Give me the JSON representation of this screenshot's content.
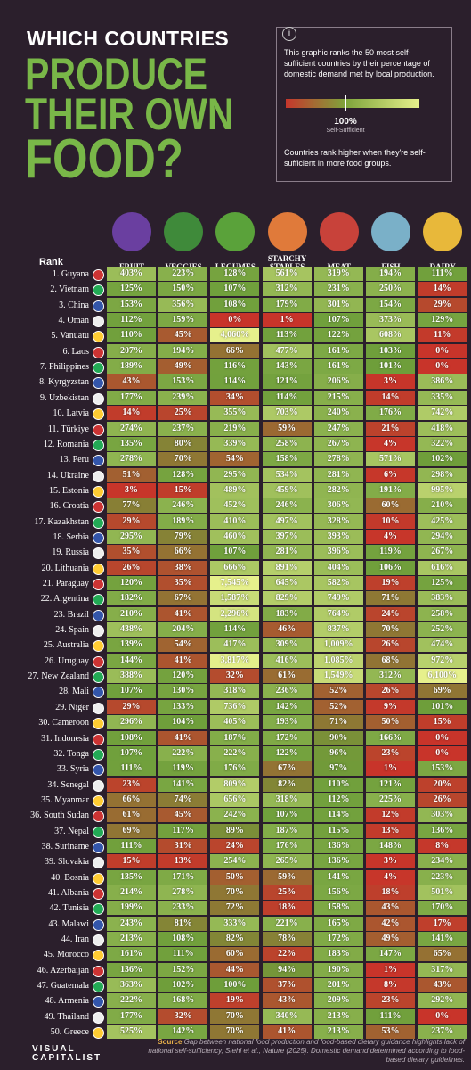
{
  "header": {
    "line1": "WHICH COUNTRIES",
    "line2": "PRODUCE",
    "line3": "THEIR OWN",
    "line4": "FOOD?"
  },
  "info": {
    "text": "This graphic ranks the 50 most self-sufficient countries by their percentage of domestic demand met by local production.",
    "legend_value": "100%",
    "legend_label": "Self-Sufficient",
    "note": "Countries rank higher when they're self-sufficient in more food groups."
  },
  "table": {
    "rank_header": "Rank",
    "columns": [
      "FRUIT",
      "VEGGIES",
      "LEGUMES",
      "STARCHY STAPLES",
      "MEAT",
      "FISH",
      "DAIRY"
    ],
    "rows": [
      [
        "1. Guyana",
        "403%",
        "223%",
        "128%",
        "561%",
        "319%",
        "194%",
        "111%"
      ],
      [
        "2. Vietnam",
        "125%",
        "150%",
        "107%",
        "312%",
        "231%",
        "250%",
        "14%"
      ],
      [
        "3. China",
        "153%",
        "356%",
        "108%",
        "179%",
        "301%",
        "154%",
        "29%"
      ],
      [
        "4. Oman",
        "112%",
        "159%",
        "0%",
        "1%",
        "107%",
        "373%",
        "129%"
      ],
      [
        "5. Vanuatu",
        "110%",
        "45%",
        "4,060%",
        "113%",
        "122%",
        "608%",
        "11%"
      ],
      [
        "6. Laos",
        "207%",
        "194%",
        "66%",
        "477%",
        "161%",
        "103%",
        "0%"
      ],
      [
        "7. Philippines",
        "189%",
        "49%",
        "116%",
        "143%",
        "161%",
        "101%",
        "0%"
      ],
      [
        "8. Kyrgyzstan",
        "43%",
        "153%",
        "114%",
        "121%",
        "206%",
        "3%",
        "386%"
      ],
      [
        "9. Uzbekistan",
        "177%",
        "239%",
        "34%",
        "114%",
        "215%",
        "14%",
        "335%"
      ],
      [
        "10. Latvia",
        "14%",
        "25%",
        "355%",
        "703%",
        "240%",
        "176%",
        "742%"
      ],
      [
        "11. Türkiye",
        "274%",
        "237%",
        "219%",
        "59%",
        "247%",
        "21%",
        "418%"
      ],
      [
        "12. Romania",
        "135%",
        "80%",
        "339%",
        "258%",
        "267%",
        "4%",
        "322%"
      ],
      [
        "13. Peru",
        "278%",
        "70%",
        "54%",
        "158%",
        "278%",
        "571%",
        "102%"
      ],
      [
        "14. Ukraine",
        "51%",
        "128%",
        "295%",
        "534%",
        "281%",
        "6%",
        "298%"
      ],
      [
        "15. Estonia",
        "3%",
        "15%",
        "489%",
        "459%",
        "282%",
        "191%",
        "995%"
      ],
      [
        "16. Croatia",
        "77%",
        "246%",
        "452%",
        "246%",
        "306%",
        "60%",
        "210%"
      ],
      [
        "17. Kazakhstan",
        "29%",
        "189%",
        "410%",
        "497%",
        "328%",
        "10%",
        "425%"
      ],
      [
        "18. Serbia",
        "295%",
        "79%",
        "460%",
        "397%",
        "393%",
        "4%",
        "294%"
      ],
      [
        "19. Russia",
        "35%",
        "66%",
        "107%",
        "281%",
        "396%",
        "119%",
        "267%"
      ],
      [
        "20. Lithuania",
        "26%",
        "38%",
        "666%",
        "891%",
        "404%",
        "106%",
        "616%"
      ],
      [
        "21. Paraguay",
        "120%",
        "35%",
        "7,545%",
        "645%",
        "582%",
        "19%",
        "125%"
      ],
      [
        "22. Argentina",
        "182%",
        "67%",
        "1,587%",
        "829%",
        "749%",
        "71%",
        "383%"
      ],
      [
        "23. Brazil",
        "210%",
        "41%",
        "2,296%",
        "183%",
        "764%",
        "24%",
        "258%"
      ],
      [
        "24. Spain",
        "438%",
        "204%",
        "114%",
        "46%",
        "837%",
        "70%",
        "252%"
      ],
      [
        "25. Australia",
        "139%",
        "54%",
        "417%",
        "309%",
        "1,009%",
        "26%",
        "474%"
      ],
      [
        "26. Uruguay",
        "144%",
        "41%",
        "3,817%",
        "416%",
        "1,085%",
        "68%",
        "972%"
      ],
      [
        "27. New Zealand",
        "388%",
        "120%",
        "32%",
        "61%",
        "1,549%",
        "312%",
        "6,100%"
      ],
      [
        "28. Mali",
        "107%",
        "130%",
        "318%",
        "236%",
        "52%",
        "26%",
        "69%"
      ],
      [
        "29. Niger",
        "29%",
        "133%",
        "736%",
        "142%",
        "52%",
        "9%",
        "101%"
      ],
      [
        "30. Cameroon",
        "296%",
        "104%",
        "405%",
        "193%",
        "71%",
        "50%",
        "15%"
      ],
      [
        "31. Indonesia",
        "108%",
        "41%",
        "187%",
        "172%",
        "90%",
        "166%",
        "0%"
      ],
      [
        "32. Tonga",
        "107%",
        "222%",
        "222%",
        "122%",
        "96%",
        "23%",
        "0%"
      ],
      [
        "33. Syria",
        "111%",
        "119%",
        "176%",
        "67%",
        "97%",
        "1%",
        "153%"
      ],
      [
        "34. Senegal",
        "23%",
        "141%",
        "809%",
        "82%",
        "110%",
        "121%",
        "20%"
      ],
      [
        "35. Myanmar",
        "66%",
        "74%",
        "656%",
        "318%",
        "112%",
        "225%",
        "26%"
      ],
      [
        "36. South Sudan",
        "61%",
        "45%",
        "242%",
        "107%",
        "114%",
        "12%",
        "303%"
      ],
      [
        "37. Nepal",
        "69%",
        "117%",
        "89%",
        "187%",
        "115%",
        "13%",
        "136%"
      ],
      [
        "38. Suriname",
        "111%",
        "31%",
        "24%",
        "176%",
        "136%",
        "148%",
        "8%"
      ],
      [
        "39. Slovakia",
        "15%",
        "13%",
        "254%",
        "265%",
        "136%",
        "3%",
        "234%"
      ],
      [
        "40. Bosnia",
        "135%",
        "171%",
        "50%",
        "59%",
        "141%",
        "4%",
        "223%"
      ],
      [
        "41. Albania",
        "214%",
        "278%",
        "70%",
        "25%",
        "156%",
        "18%",
        "501%"
      ],
      [
        "42. Tunisia",
        "199%",
        "233%",
        "72%",
        "18%",
        "158%",
        "43%",
        "170%"
      ],
      [
        "43. Malawi",
        "243%",
        "81%",
        "333%",
        "221%",
        "165%",
        "42%",
        "17%"
      ],
      [
        "44. Iran",
        "213%",
        "108%",
        "82%",
        "78%",
        "172%",
        "49%",
        "141%"
      ],
      [
        "45. Morocco",
        "161%",
        "111%",
        "60%",
        "22%",
        "183%",
        "147%",
        "65%"
      ],
      [
        "46. Azerbaijan",
        "136%",
        "152%",
        "44%",
        "94%",
        "190%",
        "1%",
        "317%"
      ],
      [
        "47. Guatemala",
        "363%",
        "102%",
        "100%",
        "37%",
        "201%",
        "8%",
        "43%"
      ],
      [
        "48. Armenia",
        "222%",
        "168%",
        "19%",
        "43%",
        "209%",
        "23%",
        "292%"
      ],
      [
        "49. Thailand",
        "177%",
        "32%",
        "70%",
        "340%",
        "213%",
        "111%",
        "0%"
      ],
      [
        "50. Greece",
        "525%",
        "142%",
        "70%",
        "41%",
        "213%",
        "53%",
        "237%"
      ]
    ]
  },
  "footer": {
    "brand": "VISUAL CAPITALIST",
    "source_label": "Source",
    "source_text": "Gap between national food production and food-based dietary guidance highlights lack of national self-sufficiency, Stehl et al., Nature (2025). Domestic demand determined according to food-based dietary guidelines."
  }
}
